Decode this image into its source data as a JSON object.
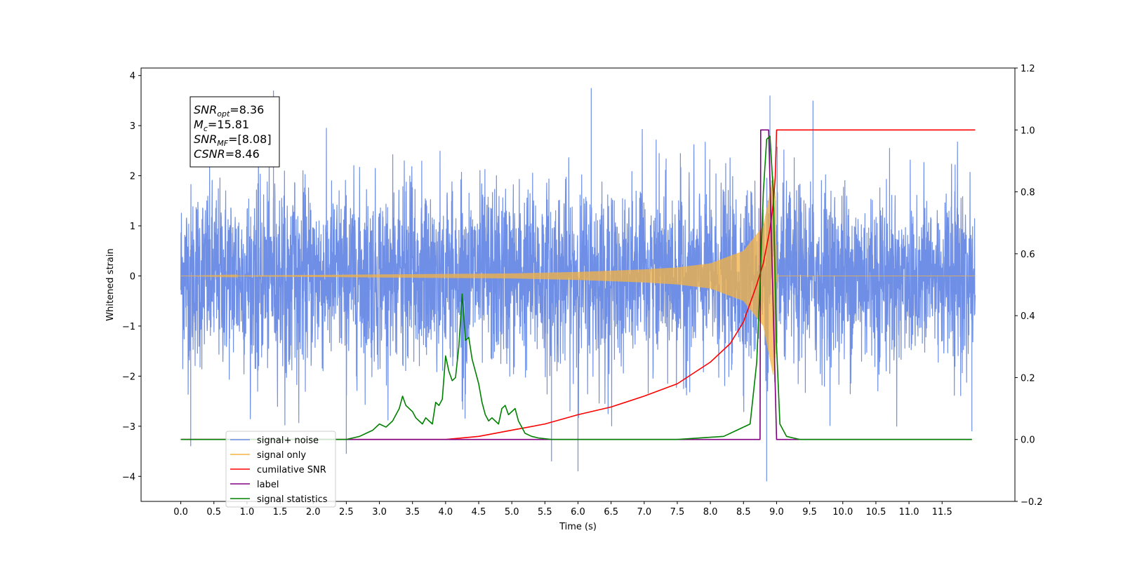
{
  "chart_data": {
    "type": "line",
    "xlabel": "Time (s)",
    "ylabel": "Whitened strain",
    "xlim": [
      -0.6,
      12.6
    ],
    "ylim": [
      -4.5,
      4.15
    ],
    "ylim_right": [
      -0.2,
      1.2
    ],
    "grid": false,
    "legend_position": "lower-left",
    "x_ticks": [
      "0.0",
      "0.5",
      "1.0",
      "1.5",
      "2.0",
      "2.5",
      "3.0",
      "3.5",
      "4.0",
      "4.5",
      "5.0",
      "5.5",
      "6.0",
      "6.5",
      "7.0",
      "7.5",
      "8.0",
      "8.5",
      "9.0",
      "9.5",
      "10.0",
      "10.5",
      "11.0",
      "11.5"
    ],
    "y_ticks_left": [
      4,
      3,
      2,
      1,
      0,
      -1,
      -2,
      -3,
      -4
    ],
    "y_tick_labels_left": [
      "4",
      "3",
      "2",
      "1",
      "0",
      "−1",
      "−2",
      "−3",
      "−4"
    ],
    "y_ticks_right": [
      1.2,
      1.0,
      0.8,
      0.6,
      0.4,
      0.2,
      0.0,
      -0.2
    ],
    "y_tick_labels_right": [
      "1.2",
      "1.0",
      "0.8",
      "0.6",
      "0.4",
      "0.2",
      "0.0",
      "−0.2"
    ],
    "series": [
      {
        "name": "signal+ noise",
        "color": "#6f8fe6",
        "axis": "left",
        "x_range": [
          0.0,
          12.0
        ],
        "approx_std": 0.9,
        "extremes": [
          [
            1.4,
            3.7
          ],
          [
            6.2,
            3.75
          ],
          [
            8.9,
            3.6
          ],
          [
            9.55,
            3.5
          ],
          [
            8.85,
            -4.1
          ],
          [
            6.0,
            -3.9
          ],
          [
            5.6,
            -3.7
          ],
          [
            2.5,
            -3.55
          ],
          [
            0.15,
            -3.4
          ],
          [
            11.95,
            -3.1
          ]
        ]
      },
      {
        "name": "signal only",
        "color": "#f5b342",
        "axis": "left",
        "amplitude_envelope": [
          [
            0.0,
            0.0
          ],
          [
            5.0,
            0.05
          ],
          [
            6.0,
            0.08
          ],
          [
            7.0,
            0.13
          ],
          [
            7.5,
            0.17
          ],
          [
            8.0,
            0.25
          ],
          [
            8.5,
            0.5
          ],
          [
            8.8,
            1.0
          ],
          [
            8.95,
            2.0
          ],
          [
            8.99,
            1.5
          ],
          [
            9.0,
            0.0
          ],
          [
            12.0,
            0.0
          ]
        ]
      },
      {
        "name": "cumilative SNR",
        "color": "#ff0000",
        "axis": "right",
        "x": [
          0.0,
          4.0,
          4.5,
          5.0,
          5.5,
          6.0,
          6.5,
          7.0,
          7.5,
          8.0,
          8.3,
          8.5,
          8.7,
          8.8,
          8.9,
          8.95,
          8.98,
          9.0,
          12.0
        ],
        "y": [
          0.0,
          0.0,
          0.01,
          0.03,
          0.05,
          0.08,
          0.105,
          0.14,
          0.18,
          0.25,
          0.31,
          0.38,
          0.5,
          0.57,
          0.68,
          0.76,
          0.85,
          1.0,
          1.0
        ]
      },
      {
        "name": "label",
        "color": "#800080",
        "axis": "right",
        "x": [
          0.0,
          8.75,
          8.76,
          8.88,
          9.0,
          11.95
        ],
        "y": [
          0.0,
          0.0,
          1.0,
          1.0,
          0.0,
          0.0
        ]
      },
      {
        "name": "signal statistics",
        "color": "#008000",
        "axis": "right",
        "x": [
          0.0,
          2.5,
          2.6,
          2.7,
          2.8,
          2.9,
          3.0,
          3.1,
          3.2,
          3.25,
          3.3,
          3.35,
          3.4,
          3.5,
          3.55,
          3.6,
          3.65,
          3.7,
          3.75,
          3.8,
          3.85,
          3.9,
          3.95,
          4.0,
          4.05,
          4.1,
          4.15,
          4.2,
          4.25,
          4.3,
          4.35,
          4.4,
          4.45,
          4.5,
          4.55,
          4.6,
          4.65,
          4.7,
          4.75,
          4.8,
          4.85,
          4.9,
          4.95,
          5.0,
          5.05,
          5.1,
          5.15,
          5.2,
          5.3,
          5.4,
          5.6,
          6.0,
          7.5,
          8.2,
          8.4,
          8.6,
          8.7,
          8.75,
          8.8,
          8.85,
          8.9,
          8.95,
          9.0,
          9.05,
          9.15,
          9.25,
          9.35,
          11.95
        ],
        "y": [
          0.0,
          0.0,
          0.005,
          0.01,
          0.02,
          0.03,
          0.05,
          0.04,
          0.06,
          0.08,
          0.1,
          0.14,
          0.11,
          0.09,
          0.07,
          0.06,
          0.05,
          0.07,
          0.06,
          0.05,
          0.12,
          0.11,
          0.13,
          0.27,
          0.22,
          0.19,
          0.2,
          0.3,
          0.47,
          0.32,
          0.33,
          0.26,
          0.22,
          0.18,
          0.12,
          0.08,
          0.06,
          0.07,
          0.06,
          0.05,
          0.1,
          0.11,
          0.08,
          0.09,
          0.1,
          0.06,
          0.04,
          0.02,
          0.01,
          0.005,
          0.0,
          0.0,
          0.0,
          0.01,
          0.03,
          0.05,
          0.25,
          0.5,
          0.8,
          0.97,
          0.98,
          0.8,
          0.3,
          0.05,
          0.01,
          0.005,
          0.0,
          0.0
        ]
      }
    ],
    "legend": [
      {
        "label": "signal+ noise",
        "color": "#6f8fe6"
      },
      {
        "label": "signal only",
        "color": "#f5b342"
      },
      {
        "label": "cumilative SNR",
        "color": "#ff0000"
      },
      {
        "label": "label",
        "color": "#800080"
      },
      {
        "label": "signal statistics",
        "color": "#008000"
      }
    ],
    "annotation": [
      {
        "base": "SNR",
        "sub": "opt",
        "value": "=8.36"
      },
      {
        "base": "M",
        "sub": "c",
        "value": "=15.81"
      },
      {
        "base": "SNR",
        "sub": "MF",
        "value": "=[8.08]"
      },
      {
        "base": "CSNR",
        "sub": "",
        "value": "=8.46"
      }
    ]
  }
}
